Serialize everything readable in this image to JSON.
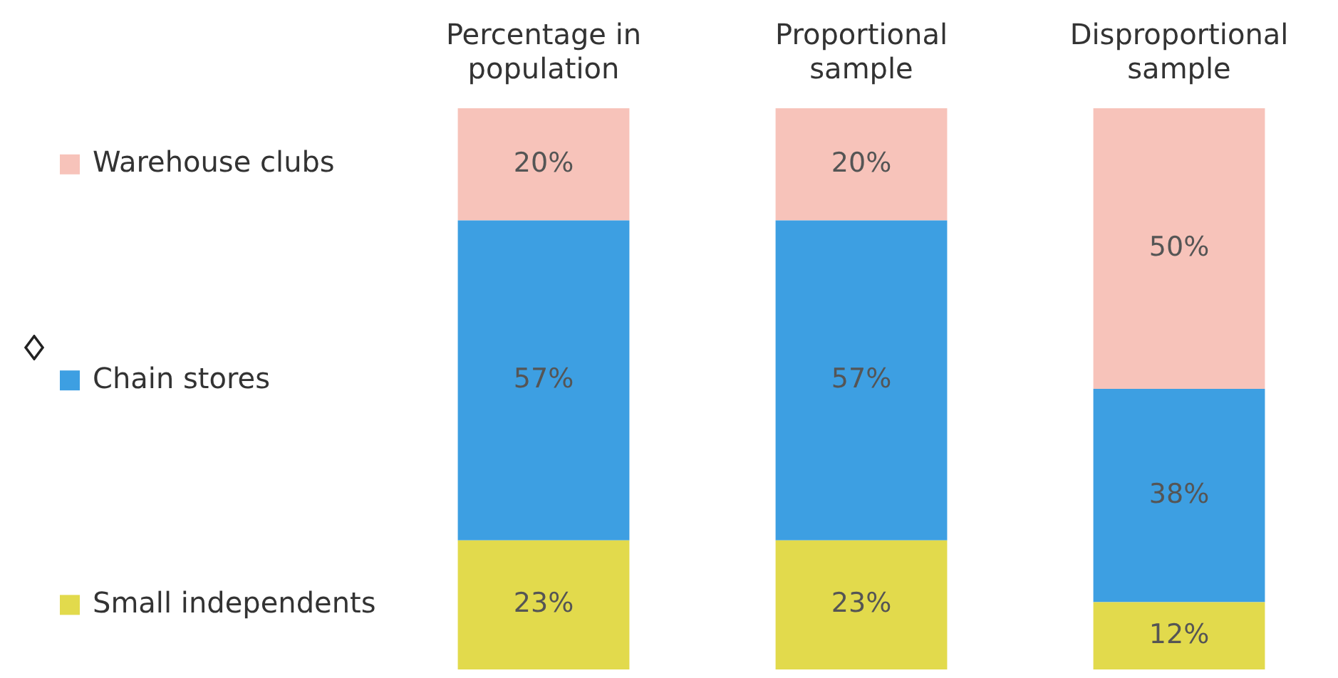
{
  "chart_data": {
    "type": "bar",
    "stacked": true,
    "legend": "left",
    "grid": false,
    "categories": [
      "Percentage in population",
      "Proportional sample",
      "Disproportional sample"
    ],
    "series": [
      {
        "name": "Small independents",
        "color": "#e2da4c",
        "values": [
          23,
          23,
          12
        ],
        "value_labels": [
          "23%",
          "23%",
          "12%"
        ]
      },
      {
        "name": "Chain stores",
        "color": "#3d9fe2",
        "values": [
          57,
          57,
          38
        ],
        "value_labels": [
          "57%",
          "57%",
          "38%"
        ]
      },
      {
        "name": "Warehouse clubs",
        "color": "#f7c3ba",
        "values": [
          20,
          20,
          50
        ],
        "value_labels": [
          "20%",
          "20%",
          "50%"
        ]
      }
    ]
  }
}
